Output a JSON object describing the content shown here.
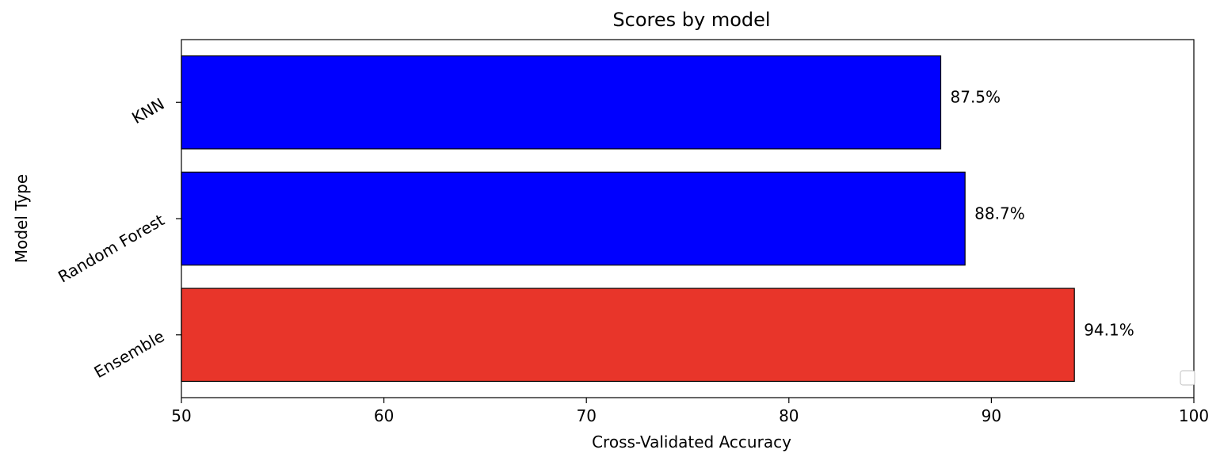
{
  "chart_data": {
    "type": "bar",
    "orientation": "horizontal",
    "title": "Scores by model",
    "xlabel": "Cross-Validated Accuracy",
    "ylabel": "Model Type",
    "xlim": [
      50,
      100
    ],
    "x_ticks": [
      "50",
      "60",
      "70",
      "80",
      "90",
      "100"
    ],
    "categories": [
      "Ensemble",
      "Random Forest",
      "KNN"
    ],
    "values": [
      94.1,
      88.7,
      87.5
    ],
    "value_labels": [
      "94.1%",
      "88.7%",
      "87.5%"
    ],
    "bar_colors": [
      "#e8352a",
      "#0000ff",
      "#0000ff"
    ],
    "edge_color": "#000000",
    "grid": false,
    "legend": {
      "position": "lower right",
      "entries": []
    }
  }
}
